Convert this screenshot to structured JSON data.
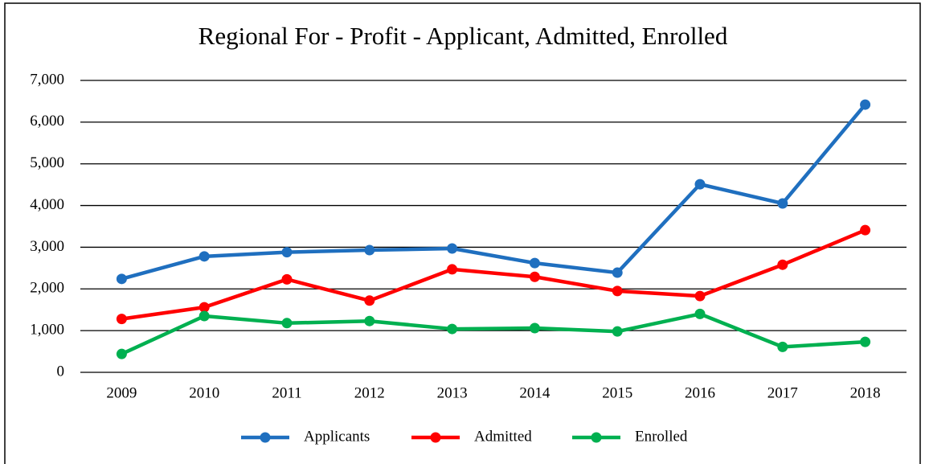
{
  "chart_data": {
    "type": "line",
    "title": "Regional For - Profit - Applicant, Admitted, Enrolled",
    "categories": [
      "2009",
      "2010",
      "2011",
      "2012",
      "2013",
      "2014",
      "2015",
      "2016",
      "2017",
      "2018"
    ],
    "series": [
      {
        "name": "Applicants",
        "color": "#1f6fbf",
        "values": [
          2240,
          2780,
          2880,
          2930,
          2970,
          2620,
          2390,
          4510,
          4050,
          6420
        ]
      },
      {
        "name": "Admitted",
        "color": "#ff0000",
        "values": [
          1280,
          1560,
          2230,
          1720,
          2470,
          2290,
          1950,
          1830,
          2580,
          3410
        ]
      },
      {
        "name": "Enrolled",
        "color": "#00b050",
        "values": [
          440,
          1350,
          1180,
          1230,
          1040,
          1060,
          980,
          1400,
          610,
          730
        ]
      }
    ],
    "ylim": [
      0,
      7000
    ],
    "yticks": [
      0,
      {
        "value": 1000,
        "label": "1,000"
      },
      {
        "value": 2000,
        "label": "2,000"
      },
      {
        "value": 3000,
        "label": "3,000"
      },
      {
        "value": 4000,
        "label": "4,000"
      },
      {
        "value": 5000,
        "label": "5,000"
      },
      {
        "value": 6000,
        "label": "6,000"
      },
      {
        "value": 7000,
        "label": "7,000"
      }
    ],
    "grid": true,
    "legend": "bottom"
  }
}
